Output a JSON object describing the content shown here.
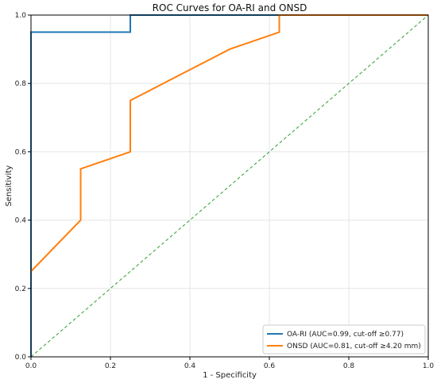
{
  "chart_data": {
    "type": "line",
    "title": "ROC Curves for OA-RI and ONSD",
    "xlabel": "1 - Specificity",
    "ylabel": "Sensitivity",
    "xlim": [
      0,
      1
    ],
    "ylim": [
      0,
      1
    ],
    "xticks": [
      "0.0",
      "0.2",
      "0.4",
      "0.6",
      "0.8",
      "1.0"
    ],
    "yticks": [
      "0.0",
      "0.2",
      "0.4",
      "0.6",
      "0.8",
      "1.0"
    ],
    "grid": true,
    "legend_position": "bottom-right",
    "series": [
      {
        "name": "OA-RI (AUC=0.99, cut-off ≥0.77)",
        "color": "#1f77b4",
        "x": [
          0.0,
          0.0,
          0.25,
          0.25,
          1.0
        ],
        "y": [
          0.0,
          0.95,
          0.95,
          1.0,
          1.0
        ]
      },
      {
        "name": "ONSD (AUC=0.81, cut-off ≥4.20 mm)",
        "color": "#ff7f0e",
        "x": [
          0.0,
          0.125,
          0.125,
          0.25,
          0.25,
          0.5,
          0.625,
          0.625,
          1.0
        ],
        "y": [
          0.25,
          0.4,
          0.55,
          0.6,
          0.75,
          0.9,
          0.95,
          1.0,
          1.0
        ]
      }
    ],
    "reference_line": {
      "color": "#2ca02c",
      "style": "dashed",
      "x": [
        0,
        1
      ],
      "y": [
        0,
        1
      ]
    }
  }
}
